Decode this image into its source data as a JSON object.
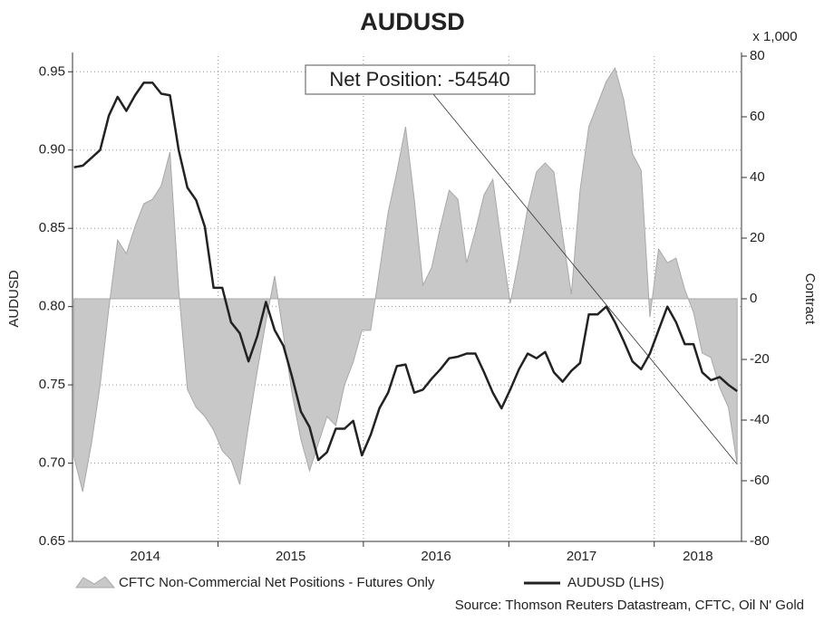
{
  "chart_data": {
    "type": "line",
    "title": "AUDUSD",
    "ylabel": "AUDUSD",
    "y2label": "Contract",
    "y2unit": "x 1,000",
    "annotation": "Net Position: -54540",
    "source": "Source: Thomson Reuters Datastream, CFTC, Oil N' Gold",
    "xlim": [
      2014,
      2018.6
    ],
    "xticks": [
      {
        "value": 2014.5,
        "label": "2014"
      },
      {
        "value": 2015.5,
        "label": "2015"
      },
      {
        "value": 2016.5,
        "label": "2016"
      },
      {
        "value": 2017.5,
        "label": "2017"
      },
      {
        "value": 2018.3,
        "label": "2018"
      }
    ],
    "xgrid": [
      2015,
      2016,
      2017,
      2018
    ],
    "ylim": [
      0.65,
      0.96
    ],
    "yticks": [
      0.65,
      {
        "value": 0.7,
        "label": "0.70"
      },
      0.75,
      {
        "value": 0.8,
        "label": "0.80"
      },
      0.85,
      {
        "value": 0.9,
        "label": "0.90"
      },
      0.95
    ],
    "y2lim": [
      -80,
      80
    ],
    "y2ticks": [
      -80,
      -60,
      -40,
      -20,
      0,
      20,
      40,
      60,
      80
    ],
    "grid": true,
    "legend": "bottom",
    "x": [
      2014.01,
      2014.07,
      2014.13,
      2014.19,
      2014.25,
      2014.31,
      2014.37,
      2014.43,
      2014.49,
      2014.55,
      2014.61,
      2014.67,
      2014.73,
      2014.79,
      2014.85,
      2014.91,
      2014.97,
      2015.03,
      2015.09,
      2015.15,
      2015.21,
      2015.27,
      2015.33,
      2015.39,
      2015.45,
      2015.51,
      2015.57,
      2015.63,
      2015.69,
      2015.75,
      2015.81,
      2015.87,
      2015.93,
      2015.99,
      2016.05,
      2016.11,
      2016.17,
      2016.23,
      2016.29,
      2016.35,
      2016.41,
      2016.47,
      2016.53,
      2016.59,
      2016.65,
      2016.71,
      2016.77,
      2016.83,
      2016.89,
      2016.95,
      2017.01,
      2017.07,
      2017.13,
      2017.19,
      2017.25,
      2017.31,
      2017.37,
      2017.43,
      2017.49,
      2017.55,
      2017.61,
      2017.67,
      2017.73,
      2017.79,
      2017.85,
      2017.91,
      2017.97,
      2018.03,
      2018.09,
      2018.15,
      2018.21,
      2018.27,
      2018.33,
      2018.39,
      2018.45,
      2018.51,
      2018.57
    ],
    "series": [
      {
        "name": "CFTC Non-Commercial Net Positions - Futures Only",
        "kind": "area",
        "axis": "y2",
        "color": "#c8c8c8",
        "values": [
          -52.2,
          -63.6,
          -47.8,
          -28.4,
          -3.0,
          19.4,
          14.9,
          23.9,
          31.3,
          32.8,
          37.3,
          48.4,
          3.0,
          -29.9,
          -35.8,
          -38.8,
          -43.3,
          -50.1,
          -53.1,
          -61.2,
          -41.8,
          -23.9,
          -7.5,
          7.5,
          -11.9,
          -31.3,
          -46.3,
          -56.7,
          -47.8,
          -38.8,
          -41.8,
          -28.4,
          -20.9,
          -10.4,
          -10.4,
          9.0,
          28.4,
          41.8,
          56.7,
          32.8,
          4.5,
          10.4,
          23.9,
          35.8,
          32.8,
          11.9,
          22.4,
          34.3,
          39.4,
          17.9,
          -1.5,
          13.4,
          29.9,
          41.8,
          44.8,
          41.8,
          20.9,
          1.5,
          35.8,
          56.7,
          64.2,
          71.6,
          76.1,
          65.7,
          47.8,
          42.4,
          -6.0,
          16.4,
          11.9,
          13.4,
          3.0,
          -4.5,
          -17.9,
          -19.4,
          -29.3,
          -35.8,
          -54.54
        ]
      },
      {
        "name": "AUDUSD (LHS)",
        "kind": "line",
        "axis": "y",
        "color": "#222222",
        "values": [
          0.889,
          0.89,
          0.895,
          0.9,
          0.922,
          0.934,
          0.925,
          0.935,
          0.943,
          0.943,
          0.936,
          0.935,
          0.9,
          0.876,
          0.868,
          0.851,
          0.812,
          0.812,
          0.79,
          0.783,
          0.765,
          0.781,
          0.803,
          0.785,
          0.775,
          0.755,
          0.733,
          0.723,
          0.702,
          0.707,
          0.722,
          0.722,
          0.727,
          0.705,
          0.718,
          0.735,
          0.745,
          0.762,
          0.763,
          0.745,
          0.747,
          0.754,
          0.76,
          0.767,
          0.768,
          0.77,
          0.77,
          0.758,
          0.745,
          0.735,
          0.747,
          0.76,
          0.77,
          0.767,
          0.771,
          0.758,
          0.752,
          0.759,
          0.764,
          0.795,
          0.795,
          0.8,
          0.79,
          0.778,
          0.765,
          0.76,
          0.77,
          0.785,
          0.8,
          0.79,
          0.776,
          0.776,
          0.758,
          0.753,
          0.755,
          0.75,
          0.746
        ]
      }
    ]
  }
}
